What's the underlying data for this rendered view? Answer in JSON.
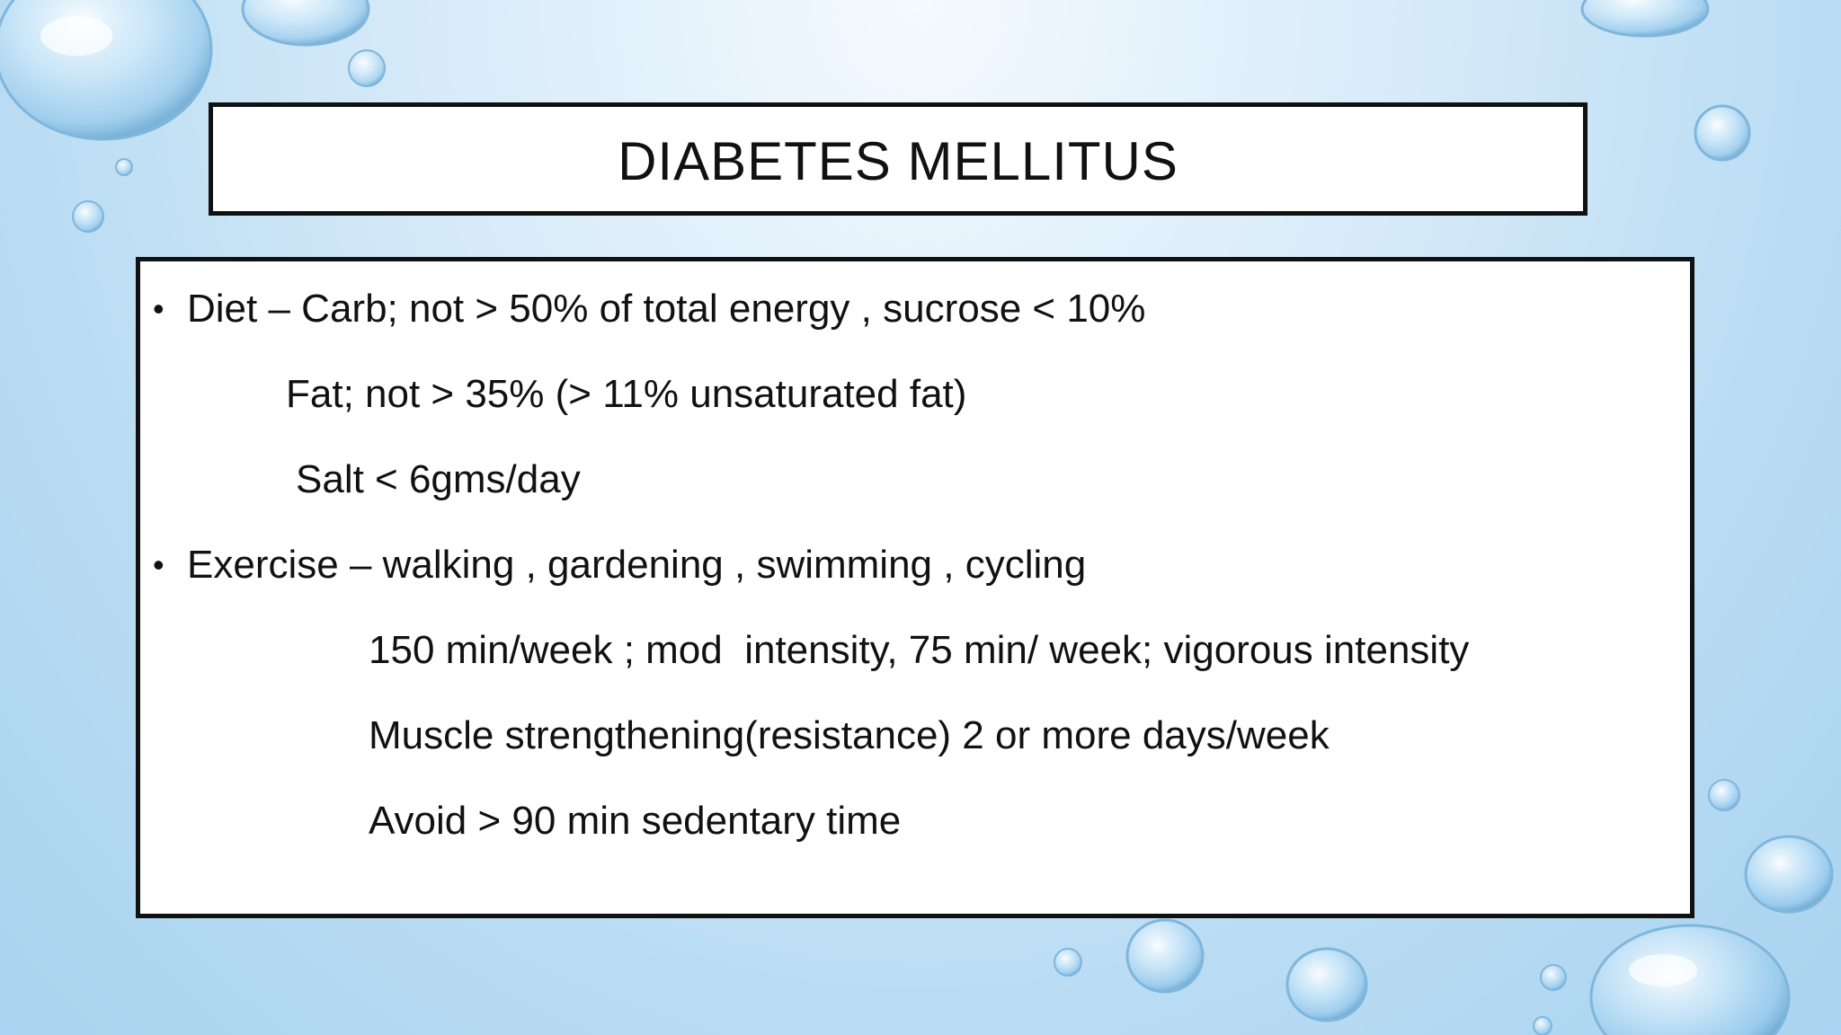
{
  "slide": {
    "title": "DIABETES MELLITUS",
    "bullets": [
      {
        "bullet_glyph": "•",
        "text": "Diet – Carb; not > 50% of total energy , sucrose < 10%",
        "sub_lines": [
          "Fat; not > 35% (> 11% unsaturated fat)",
          "Salt < 6gms/day"
        ]
      },
      {
        "bullet_glyph": "•",
        "text": "Exercise – walking , gardening , swimming , cycling",
        "sub_lines": [
          "150 min/week ; mod  intensity, 75 min/ week; vigorous intensity",
          "Muscle strengthening(resistance) 2 or more days/week",
          "Avoid > 90 min sedentary time"
        ]
      }
    ]
  },
  "colors": {
    "background_light": "#f4fafe",
    "background_dark": "#a9d3f0",
    "text": "#111111",
    "box_fill": "#ffffff",
    "box_border": "#111111"
  }
}
